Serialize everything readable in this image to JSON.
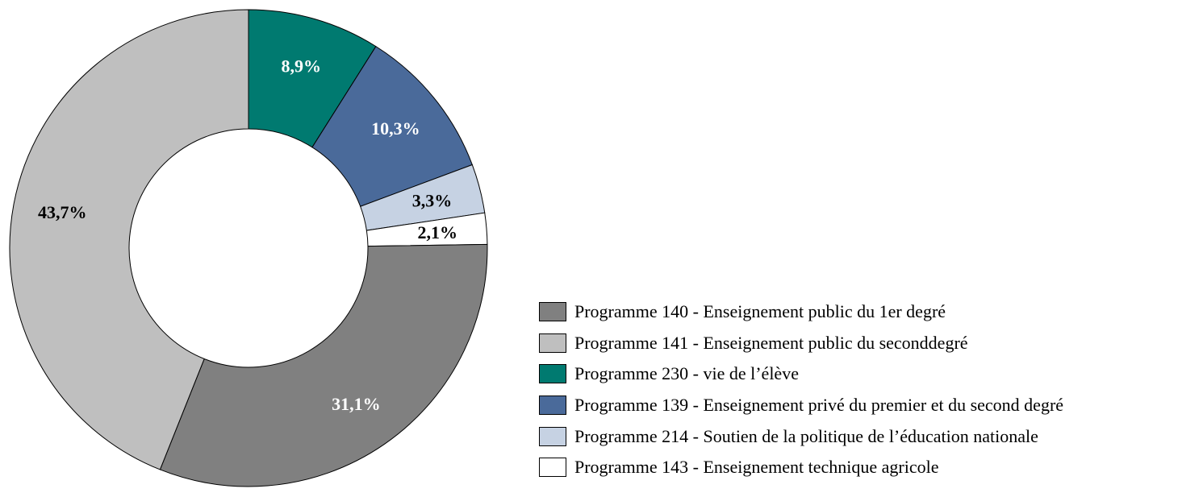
{
  "chart_data": {
    "type": "pie",
    "variant": "donut",
    "legend_position": "right",
    "series": [
      {
        "name": "Programme 140 - Enseignement public du 1er degré",
        "value": 31.1,
        "label": "31,1%",
        "color": "#808080",
        "label_color": "#ffffff"
      },
      {
        "name": "Programme 141 - Enseignement public du seconddegré",
        "value": 43.7,
        "label": "43,7%",
        "color": "#bfbfbf",
        "label_color": "#000000"
      },
      {
        "name": "Programme 230 - vie de l’élève",
        "value": 8.9,
        "label": "8,9%",
        "color": "#007a70",
        "label_color": "#ffffff"
      },
      {
        "name": "Programme 139 - Enseignement privé du premier et du second degré",
        "value": 10.3,
        "label": "10,3%",
        "color": "#4a6a9a",
        "label_color": "#ffffff"
      },
      {
        "name": "Programme 214 - Soutien de la politique de l’éducation nationale",
        "value": 3.3,
        "label": "3,3%",
        "color": "#c6d2e3",
        "label_color": "#000000"
      },
      {
        "name": "Programme 143 - Enseignement technique agricole",
        "value": 2.1,
        "label": "2,1%",
        "color": "#ffffff",
        "label_color": "#000000"
      }
    ],
    "draw_order": [
      2,
      3,
      4,
      5,
      0,
      1
    ]
  }
}
